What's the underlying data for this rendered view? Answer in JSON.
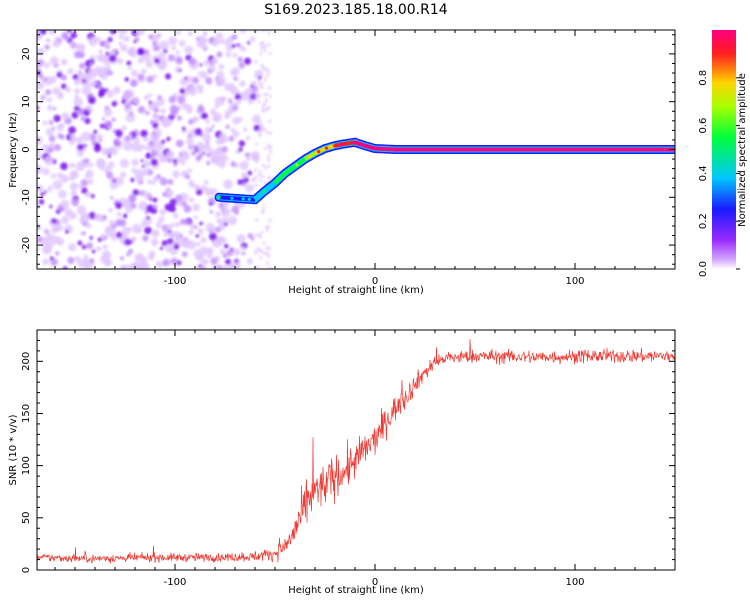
{
  "title": "S169.2023.185.18.00.R14",
  "colors": {
    "signal": "#ef3a33",
    "background": "#ffffff",
    "axis": "#000000"
  },
  "chart_data": [
    {
      "id": "spectrogram",
      "type": "heatmap",
      "xlabel": "Height of straight line (km)",
      "ylabel": "Frequency (Hz)",
      "xlim": [
        -169,
        150
      ],
      "ylim": [
        -25,
        25
      ],
      "xticks": [
        -100,
        0,
        100
      ],
      "yticks": [
        -20,
        -10,
        0,
        10,
        20
      ],
      "noise_region_x": [
        -169,
        -55
      ],
      "ridge": {
        "x": [
          -78,
          -60,
          -56,
          -50,
          -45,
          -40,
          -35,
          -30,
          -25,
          -20,
          -15,
          -10,
          -5,
          0,
          10,
          30,
          60,
          100,
          150
        ],
        "y": [
          -10,
          -10.5,
          -9,
          -7,
          -5,
          -3.5,
          -2,
          -0.8,
          0.2,
          0.8,
          1.2,
          1.5,
          0.8,
          0.2,
          0,
          0,
          0,
          0,
          0
        ],
        "amplitude": [
          0.3,
          0.2,
          0.35,
          0.35,
          0.45,
          0.5,
          0.55,
          0.65,
          0.75,
          0.8,
          0.85,
          0.9,
          0.95,
          1.0,
          1.0,
          1.0,
          0.98,
          0.98,
          0.95
        ]
      },
      "colorbar": {
        "label": "Normalized spectral amplitude",
        "range": [
          0,
          1
        ],
        "ticks": [
          "0.0",
          "0.2",
          "0.4",
          "0.6",
          "0.8"
        ]
      }
    },
    {
      "id": "snr",
      "type": "line",
      "xlabel": "Height of straight line (km)",
      "ylabel": "SNR (10 * v/v)",
      "xlim": [
        -169,
        150
      ],
      "ylim": [
        0,
        230
      ],
      "xticks": [
        -100,
        0,
        100
      ],
      "yticks": [
        0,
        50,
        100,
        150,
        200
      ],
      "series": [
        {
          "name": "SNR",
          "x": [
            -169,
            -140,
            -110,
            -80,
            -60,
            -50,
            -45,
            -40,
            -35,
            -30,
            -25,
            -20,
            -15,
            -10,
            -5,
            0,
            5,
            10,
            15,
            20,
            25,
            30,
            35,
            50,
            80,
            110,
            150
          ],
          "y": [
            12,
            11,
            12,
            12,
            13,
            16,
            22,
            38,
            60,
            75,
            82,
            90,
            95,
            105,
            115,
            125,
            140,
            155,
            165,
            178,
            190,
            198,
            203,
            205,
            204,
            205,
            205
          ],
          "noise": [
            5,
            5,
            5,
            5,
            6,
            8,
            12,
            20,
            25,
            25,
            25,
            25,
            25,
            22,
            20,
            18,
            18,
            15,
            14,
            12,
            10,
            9,
            8,
            8,
            8,
            8,
            8
          ]
        }
      ]
    }
  ]
}
